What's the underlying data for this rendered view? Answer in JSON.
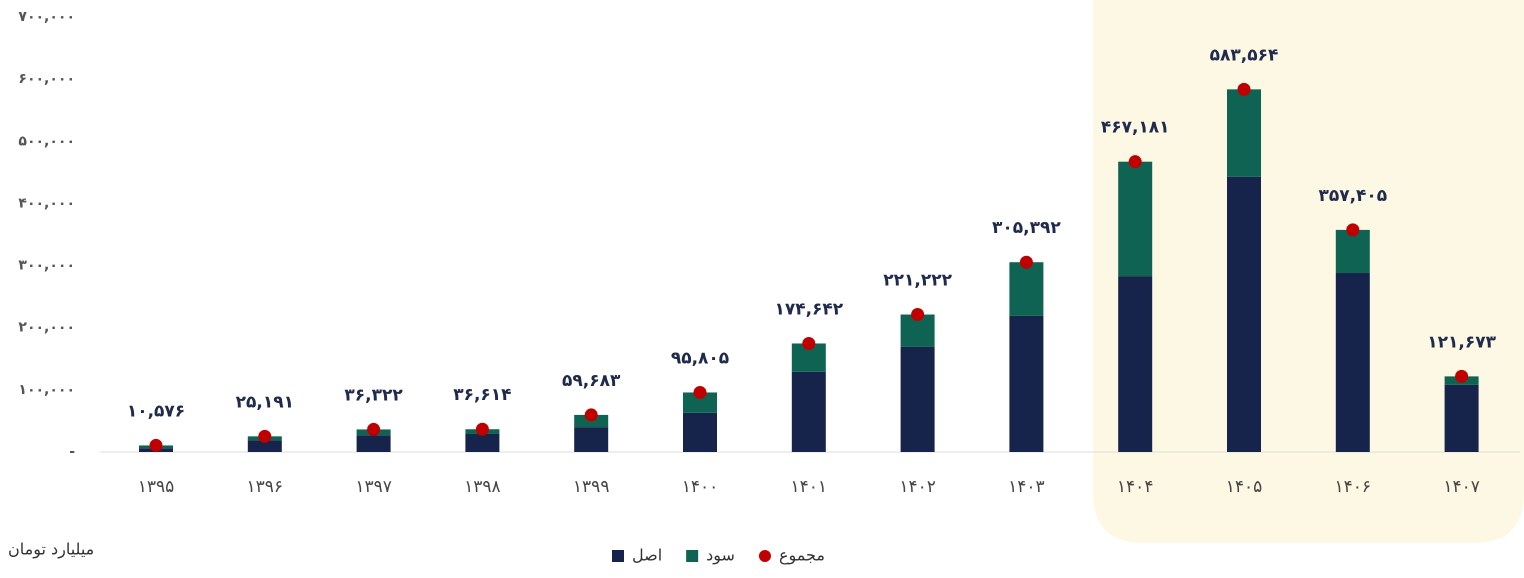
{
  "chart_data": {
    "type": "bar",
    "stacked": true,
    "unit": "میلیارد تومان",
    "categories": [
      "۱۳۹۵",
      "۱۳۹۶",
      "۱۳۹۷",
      "۱۳۹۸",
      "۱۳۹۹",
      "۱۴۰۰",
      "۱۴۰۱",
      "۱۴۰۲",
      "۱۴۰۳",
      "۱۴۰۴",
      "۱۴۰۵",
      "۱۴۰۶",
      "۱۴۰۷"
    ],
    "series": [
      {
        "name": "اصل",
        "color": "#16234a",
        "values": [
          6000,
          19000,
          27000,
          29000,
          40000,
          63000,
          129000,
          169069,
          219000,
          283000,
          443000,
          288000,
          108000
        ]
      },
      {
        "name": "سود",
        "color": "#0f6352",
        "values": [
          4576,
          6191,
          9322,
          7614,
          19683,
          32805,
          45642,
          52153,
          86392,
          184181,
          140564,
          69405,
          13673
        ]
      },
      {
        "name": "مجموع",
        "type": "dot",
        "color": "#c00000",
        "values": [
          10576,
          25191,
          36322,
          36614,
          59683,
          95805,
          174642,
          221222,
          305392,
          467181,
          583564,
          357405,
          121673
        ],
        "value_labels": [
          "۱۰,۵۷۶",
          "۲۵,۱۹۱",
          "۳۶,۳۲۲",
          "۳۶,۶۱۴",
          "۵۹,۶۸۳",
          "۹۵,۸۰۵",
          "۱۷۴,۶۴۲",
          "۲۲۱,۲۲۲",
          "۳۰۵,۳۹۲",
          "۴۶۷,۱۸۱",
          "۵۸۳,۵۶۴",
          "۳۵۷,۴۰۵",
          "۱۲۱,۶۷۳"
        ]
      }
    ],
    "ylim": [
      0,
      700000
    ],
    "yticks": [
      {
        "value": 0,
        "label": "-"
      },
      {
        "value": 100000,
        "label": "۱۰۰,۰۰۰"
      },
      {
        "value": 200000,
        "label": "۲۰۰,۰۰۰"
      },
      {
        "value": 300000,
        "label": "۳۰۰,۰۰۰"
      },
      {
        "value": 400000,
        "label": "۴۰۰,۰۰۰"
      },
      {
        "value": 500000,
        "label": "۵۰۰,۰۰۰"
      },
      {
        "value": 600000,
        "label": "۶۰۰,۰۰۰"
      },
      {
        "value": 700000,
        "label": "۷۰۰,۰۰۰"
      }
    ],
    "grid": false
  }
}
